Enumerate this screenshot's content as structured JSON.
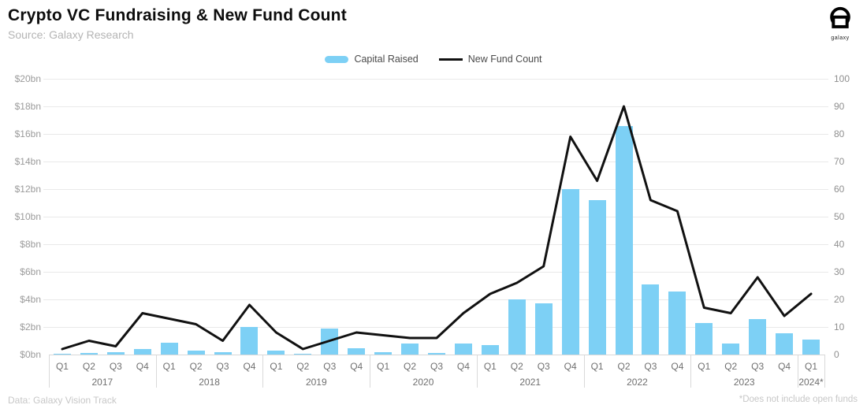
{
  "header": {
    "title": "Crypto VC Fundraising & New Fund Count",
    "source": "Source: Galaxy Research",
    "logo_text": "galaxy"
  },
  "legend": [
    {
      "label": "Capital Raised",
      "swatch": "bar",
      "color": "#7DD0F5"
    },
    {
      "label": "New Fund Count",
      "swatch": "line",
      "color": "#111111"
    }
  ],
  "footer": {
    "left_note": "Data: Galaxy Vision Track",
    "right_note": "*Does not include open funds"
  },
  "chart_data": {
    "type": "bar",
    "subtype": "bar+line combo, dual axis",
    "groups": [
      {
        "year": "2017",
        "quarters": [
          "Q1",
          "Q2",
          "Q3",
          "Q4"
        ]
      },
      {
        "year": "2018",
        "quarters": [
          "Q1",
          "Q2",
          "Q3",
          "Q4"
        ]
      },
      {
        "year": "2019",
        "quarters": [
          "Q1",
          "Q2",
          "Q3",
          "Q4"
        ]
      },
      {
        "year": "2020",
        "quarters": [
          "Q1",
          "Q2",
          "Q3",
          "Q4"
        ]
      },
      {
        "year": "2021",
        "quarters": [
          "Q1",
          "Q2",
          "Q3",
          "Q4"
        ]
      },
      {
        "year": "2022",
        "quarters": [
          "Q1",
          "Q2",
          "Q3",
          "Q4"
        ]
      },
      {
        "year": "2023",
        "quarters": [
          "Q1",
          "Q2",
          "Q3",
          "Q4"
        ]
      },
      {
        "year": "2024*",
        "quarters": [
          "Q1"
        ]
      }
    ],
    "series": [
      {
        "name": "Capital Raised",
        "type": "bar",
        "axis": "left",
        "unit": "$bn",
        "color": "#7DD0F5",
        "values": [
          0.03,
          0.1,
          0.15,
          0.4,
          0.85,
          0.3,
          0.2,
          2.0,
          0.3,
          0.05,
          1.9,
          0.45,
          0.2,
          0.8,
          0.1,
          0.8,
          0.7,
          4.0,
          3.7,
          12.0,
          11.2,
          16.6,
          5.1,
          4.6,
          2.3,
          0.8,
          2.6,
          1.55,
          1.1
        ]
      },
      {
        "name": "New Fund Count",
        "type": "line",
        "axis": "right",
        "unit": "funds",
        "color": "#111111",
        "values": [
          2,
          5,
          3,
          15,
          13,
          11,
          5,
          18,
          8,
          2,
          5,
          8,
          7,
          6,
          6,
          15,
          22,
          26,
          32,
          79,
          63,
          90,
          56,
          52,
          17,
          15,
          28,
          14,
          22
        ]
      }
    ],
    "left_axis": {
      "min": 0,
      "max": 20,
      "ticks": [
        "$0bn",
        "$2bn",
        "$4bn",
        "$6bn",
        "$8bn",
        "$10bn",
        "$12bn",
        "$14bn",
        "$16bn",
        "$18bn",
        "$20bn"
      ]
    },
    "right_axis": {
      "min": 0,
      "max": 100,
      "ticks": [
        "0",
        "10",
        "20",
        "30",
        "40",
        "50",
        "60",
        "70",
        "80",
        "90",
        "100"
      ]
    },
    "grid": true,
    "legend_position": "top-center"
  }
}
